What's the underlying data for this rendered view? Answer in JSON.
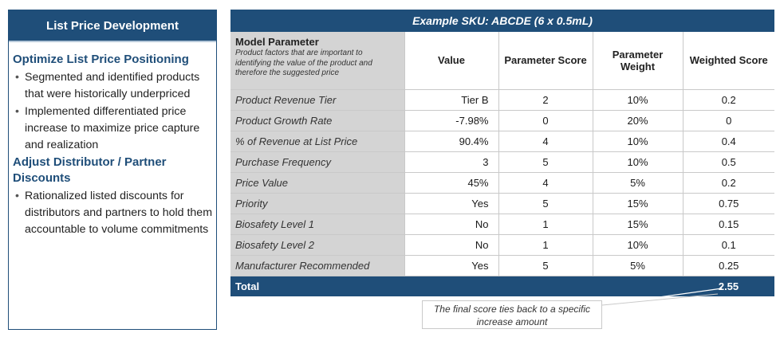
{
  "left_panel": {
    "title": "List Price Development",
    "sections": [
      {
        "heading": "Optimize List Price Positioning",
        "bullets": [
          "Segmented and identified products that were historically underpriced",
          "Implemented differentiated price increase to maximize price capture and realization"
        ]
      },
      {
        "heading": "Adjust Distributor / Partner Discounts",
        "bullets": [
          "Rationalized listed discounts for distributors and partners to hold them accountable to volume commitments"
        ]
      }
    ],
    "bullet_glyph": "•"
  },
  "table": {
    "sku_title": "Example SKU: ABCDE (6 x 0.5mL)",
    "header": {
      "param_title": "Model Parameter",
      "param_desc": "Product factors that are important to identifying the value of the product and therefore the suggested price",
      "value": "Value",
      "score": "Parameter Score",
      "weight": "Parameter Weight",
      "weighted": "Weighted Score"
    },
    "rows": [
      {
        "param": "Product Revenue Tier",
        "value": "Tier B",
        "score": "2",
        "weight": "10%",
        "weighted": "0.2"
      },
      {
        "param": "Product Growth Rate",
        "value": "-7.98%",
        "score": "0",
        "weight": "20%",
        "weighted": "0"
      },
      {
        "param": "% of Revenue at List Price",
        "value": "90.4%",
        "score": "4",
        "weight": "10%",
        "weighted": "0.4"
      },
      {
        "param": "Purchase Frequency",
        "value": "3",
        "score": "5",
        "weight": "10%",
        "weighted": "0.5"
      },
      {
        "param": "Price Value",
        "value": "45%",
        "score": "4",
        "weight": "5%",
        "weighted": "0.2"
      },
      {
        "param": "Priority",
        "value": "Yes",
        "score": "5",
        "weight": "15%",
        "weighted": "0.75"
      },
      {
        "param": "Biosafety Level 1",
        "value": "No",
        "score": "1",
        "weight": "15%",
        "weighted": "0.15"
      },
      {
        "param": "Biosafety Level 2",
        "value": "No",
        "score": "1",
        "weight": "10%",
        "weighted": "0.1"
      },
      {
        "param": "Manufacturer Recommended",
        "value": "Yes",
        "score": "5",
        "weight": "5%",
        "weighted": "0.25"
      }
    ],
    "total_label": "Total",
    "total_value": "2.55"
  },
  "note": {
    "text": "The final score ties back to a specific increase amount"
  },
  "colors": {
    "brand_navy": "#1f4e79",
    "param_gray": "#d4d4d4"
  }
}
